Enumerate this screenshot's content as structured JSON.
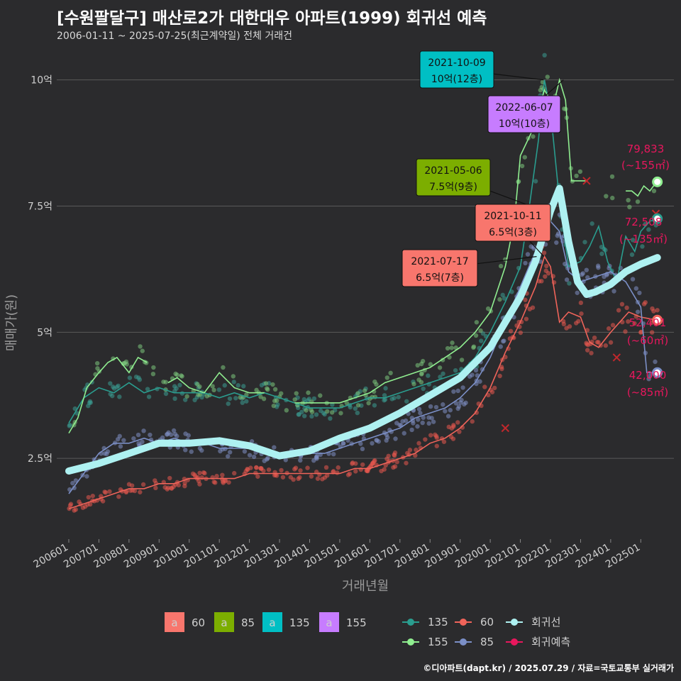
{
  "title": "[수원팔달구] 매산로2가 대한대우 아파트(1999) 회귀선 예측",
  "subtitle": "2006-01-11 ~ 2025-07-25(최근계약일) 전체 거래건",
  "footer": "©디아파트(dapt.kr) / 2025.07.29 / 자료=국토교통부 실거래가",
  "colors": {
    "s60": "#f8766d",
    "s85": "#7cae00",
    "s135": "#00bfc4",
    "s155": "#c77cff",
    "line135": "#2a9d8f",
    "line155": "#90ee90",
    "line60": "#f0645a",
    "line85": "#7b8fc7",
    "regression": "#aef1f1",
    "prediction": "#e8175d"
  },
  "chart_data": {
    "type": "line",
    "xlabel": "거래년월",
    "ylabel": "매매가(원)",
    "y_ticks": [
      {
        "value": 2.5,
        "label": "2.5억"
      },
      {
        "value": 5,
        "label": "5억"
      },
      {
        "value": 7.5,
        "label": "7.5억"
      },
      {
        "value": 10,
        "label": "10억"
      }
    ],
    "x_ticks": [
      "200601",
      "200701",
      "200801",
      "200901",
      "201001",
      "201101",
      "201201",
      "201301",
      "201401",
      "201501",
      "201601",
      "201701",
      "201801",
      "201901",
      "202001",
      "202101",
      "202201",
      "202301",
      "202401",
      "202501"
    ],
    "xlim": [
      2005.6,
      2026.1
    ],
    "ylim": [
      0.9,
      10.6
    ],
    "series": [
      {
        "name": "135",
        "color_key": "line135",
        "points": [
          [
            2006.0,
            3.2
          ],
          [
            2006.5,
            3.7
          ],
          [
            2007.0,
            3.9
          ],
          [
            2007.5,
            3.8
          ],
          [
            2008.0,
            4.0
          ],
          [
            2008.5,
            3.8
          ],
          [
            2009.0,
            3.9
          ],
          [
            2009.5,
            3.8
          ],
          [
            2010.0,
            3.8
          ],
          [
            2010.5,
            3.8
          ],
          [
            2011.0,
            3.7
          ],
          [
            2011.5,
            3.8
          ],
          [
            2012.0,
            3.7
          ],
          [
            2012.5,
            3.8
          ],
          [
            2013.0,
            3.7
          ],
          [
            2013.5,
            3.6
          ],
          [
            2014.0,
            3.5
          ],
          [
            2014.5,
            3.5
          ],
          [
            2015.0,
            3.5
          ],
          [
            2015.5,
            3.6
          ],
          [
            2016.0,
            3.7
          ],
          [
            2016.5,
            3.7
          ],
          [
            2017.0,
            3.8
          ],
          [
            2017.5,
            3.9
          ],
          [
            2018.0,
            4.0
          ],
          [
            2018.5,
            4.1
          ],
          [
            2019.0,
            4.2
          ],
          [
            2019.5,
            4.5
          ],
          [
            2020.0,
            5.0
          ],
          [
            2020.5,
            5.6
          ],
          [
            2021.0,
            6.3
          ],
          [
            2021.3,
            7.5
          ],
          [
            2021.6,
            8.8
          ],
          [
            2021.8,
            10.0
          ],
          [
            2022.0,
            9.4
          ],
          [
            2022.3,
            7.6
          ],
          [
            2022.6,
            6.3
          ],
          [
            2023.0,
            6.4
          ],
          [
            2023.3,
            6.7
          ],
          [
            2023.6,
            7.1
          ],
          [
            2023.9,
            6.4
          ],
          [
            2024.2,
            6.0
          ],
          [
            2024.5,
            6.9
          ],
          [
            2024.8,
            6.6
          ],
          [
            2025.0,
            7.0
          ],
          [
            2025.3,
            7.2
          ],
          [
            2025.55,
            7.25
          ]
        ]
      },
      {
        "name": "155",
        "color_key": "line155",
        "points": [
          [
            2006.0,
            3.0
          ],
          [
            2006.3,
            3.3
          ],
          [
            2006.6,
            3.9
          ],
          [
            2007.0,
            4.2
          ],
          [
            2007.3,
            4.4
          ],
          [
            2007.6,
            4.5
          ],
          [
            2008.0,
            4.2
          ],
          [
            2008.3,
            4.5
          ],
          [
            2008.6,
            4.4
          ],
          [
            2009.0,
            null
          ],
          [
            2009.3,
            4.0
          ],
          [
            2009.6,
            4.1
          ],
          [
            2010.0,
            3.9
          ],
          [
            2010.5,
            3.8
          ],
          [
            2011.0,
            4.2
          ],
          [
            2011.5,
            3.9
          ],
          [
            2012.0,
            3.8
          ],
          [
            2012.5,
            3.8
          ],
          [
            2013.5,
            null
          ],
          [
            2013.5,
            3.6
          ],
          [
            2014.0,
            3.6
          ],
          [
            2014.5,
            3.6
          ],
          [
            2015.0,
            3.6
          ],
          [
            2015.5,
            3.7
          ],
          [
            2016.0,
            3.8
          ],
          [
            2016.5,
            4.0
          ],
          [
            2017.0,
            4.1
          ],
          [
            2017.5,
            4.2
          ],
          [
            2018.0,
            4.3
          ],
          [
            2018.5,
            4.5
          ],
          [
            2019.0,
            4.7
          ],
          [
            2019.5,
            5.0
          ],
          [
            2020.0,
            5.4
          ],
          [
            2020.5,
            6.3
          ],
          [
            2020.8,
            7.2
          ],
          [
            2021.0,
            8.5
          ],
          [
            2021.4,
            9.0
          ],
          [
            2021.8,
            9.8
          ],
          [
            2022.1,
            9.5
          ],
          [
            2022.3,
            10.0
          ],
          [
            2022.5,
            9.6
          ],
          [
            2022.7,
            8.0
          ],
          [
            2023.0,
            8.0
          ],
          [
            2023.2,
            8.0
          ],
          [
            2023.3,
            null
          ],
          [
            2024.5,
            7.8
          ],
          [
            2024.7,
            7.8
          ],
          [
            2024.9,
            7.7
          ],
          [
            2025.1,
            7.9
          ],
          [
            2025.3,
            7.8
          ],
          [
            2025.55,
            8.0
          ]
        ]
      },
      {
        "name": "60",
        "color_key": "line60",
        "points": [
          [
            2006.0,
            1.5
          ],
          [
            2006.5,
            1.6
          ],
          [
            2007.0,
            1.7
          ],
          [
            2007.5,
            1.8
          ],
          [
            2008.0,
            1.9
          ],
          [
            2008.5,
            1.9
          ],
          [
            2009.0,
            2.0
          ],
          [
            2009.5,
            2.0
          ],
          [
            2010.0,
            2.1
          ],
          [
            2010.5,
            2.1
          ],
          [
            2011.0,
            2.1
          ],
          [
            2011.5,
            2.1
          ],
          [
            2012.0,
            2.2
          ],
          [
            2012.5,
            2.2
          ],
          [
            2013.0,
            2.2
          ],
          [
            2013.5,
            2.2
          ],
          [
            2014.0,
            2.2
          ],
          [
            2014.5,
            2.2
          ],
          [
            2015.0,
            2.2
          ],
          [
            2015.5,
            2.3
          ],
          [
            2016.0,
            2.3
          ],
          [
            2016.5,
            2.4
          ],
          [
            2017.0,
            2.5
          ],
          [
            2017.5,
            2.6
          ],
          [
            2018.0,
            2.8
          ],
          [
            2018.5,
            2.9
          ],
          [
            2019.0,
            3.1
          ],
          [
            2019.5,
            3.4
          ],
          [
            2020.0,
            3.9
          ],
          [
            2020.5,
            4.6
          ],
          [
            2021.0,
            5.2
          ],
          [
            2021.5,
            5.9
          ],
          [
            2021.8,
            6.5
          ],
          [
            2022.0,
            6.3
          ],
          [
            2022.3,
            5.2
          ],
          [
            2022.6,
            5.4
          ],
          [
            2023.0,
            5.3
          ],
          [
            2023.3,
            4.8
          ],
          [
            2023.6,
            4.7
          ],
          [
            2024.0,
            5.0
          ],
          [
            2024.3,
            5.2
          ],
          [
            2024.6,
            5.4
          ],
          [
            2025.0,
            5.3
          ],
          [
            2025.55,
            5.24
          ]
        ]
      },
      {
        "name": "85",
        "color_key": "line85",
        "points": [
          [
            2006.0,
            1.8
          ],
          [
            2006.5,
            2.2
          ],
          [
            2007.0,
            2.6
          ],
          [
            2007.5,
            2.8
          ],
          [
            2008.0,
            2.8
          ],
          [
            2008.5,
            2.9
          ],
          [
            2009.0,
            2.8
          ],
          [
            2009.5,
            2.9
          ],
          [
            2010.0,
            2.8
          ],
          [
            2010.5,
            2.8
          ],
          [
            2011.0,
            2.7
          ],
          [
            2011.5,
            2.7
          ],
          [
            2012.0,
            2.7
          ],
          [
            2012.5,
            2.6
          ],
          [
            2013.0,
            2.6
          ],
          [
            2013.5,
            2.6
          ],
          [
            2014.0,
            2.6
          ],
          [
            2014.5,
            2.6
          ],
          [
            2015.0,
            2.7
          ],
          [
            2015.5,
            2.8
          ],
          [
            2016.0,
            2.9
          ],
          [
            2016.5,
            3.0
          ],
          [
            2017.0,
            3.1
          ],
          [
            2017.5,
            3.3
          ],
          [
            2018.0,
            3.4
          ],
          [
            2018.5,
            3.5
          ],
          [
            2019.0,
            3.7
          ],
          [
            2019.5,
            4.0
          ],
          [
            2020.0,
            4.5
          ],
          [
            2020.5,
            5.2
          ],
          [
            2021.0,
            5.9
          ],
          [
            2021.5,
            6.6
          ],
          [
            2022.0,
            7.2
          ],
          [
            2022.3,
            7.0
          ],
          [
            2022.6,
            6.2
          ],
          [
            2023.0,
            6.0
          ],
          [
            2023.5,
            6.1
          ],
          [
            2024.0,
            6.2
          ],
          [
            2024.5,
            6.0
          ],
          [
            2025.0,
            5.5
          ],
          [
            2025.2,
            4.2
          ],
          [
            2025.55,
            4.2
          ]
        ]
      }
    ],
    "regression": [
      [
        2006.0,
        2.25
      ],
      [
        2007.0,
        2.4
      ],
      [
        2008.0,
        2.6
      ],
      [
        2009.0,
        2.8
      ],
      [
        2010.0,
        2.8
      ],
      [
        2011.0,
        2.85
      ],
      [
        2012.0,
        2.75
      ],
      [
        2013.0,
        2.55
      ],
      [
        2014.0,
        2.65
      ],
      [
        2015.0,
        2.9
      ],
      [
        2016.0,
        3.1
      ],
      [
        2017.0,
        3.4
      ],
      [
        2018.0,
        3.75
      ],
      [
        2019.0,
        4.1
      ],
      [
        2020.0,
        4.7
      ],
      [
        2021.0,
        5.7
      ],
      [
        2021.5,
        6.4
      ],
      [
        2022.0,
        7.4
      ],
      [
        2022.3,
        7.85
      ],
      [
        2022.6,
        6.8
      ],
      [
        2022.9,
        6.0
      ],
      [
        2023.2,
        5.75
      ],
      [
        2023.5,
        5.8
      ],
      [
        2024.0,
        5.95
      ],
      [
        2024.5,
        6.2
      ],
      [
        2025.0,
        6.35
      ],
      [
        2025.55,
        6.48
      ]
    ],
    "markers": [
      {
        "x": 2025.55,
        "y": 7.98,
        "color_key": "line155"
      },
      {
        "x": 2025.55,
        "y": 7.25,
        "color_key": "line135"
      },
      {
        "x": 2025.55,
        "y": 5.24,
        "color_key": "line60"
      },
      {
        "x": 2025.55,
        "y": 4.2,
        "color_key": "line85"
      }
    ],
    "outliers": [
      [
        2020.5,
        3.1
      ],
      [
        2023.2,
        8.0
      ],
      [
        2024.2,
        4.5
      ],
      [
        2025.5,
        7.35
      ]
    ],
    "annotations": [
      {
        "date": "2021-10-09",
        "value": "10억(12층)",
        "color_key": "s135",
        "x": 2021.77,
        "y": 10.0
      },
      {
        "date": "2022-06-07",
        "value": "10억(10층)",
        "color_key": "s155",
        "x": 2022.43,
        "y": 10.0
      },
      {
        "date": "2021-05-06",
        "value": "7.5억(9층)",
        "color_key": "s85",
        "x": 2021.35,
        "y": 7.5
      },
      {
        "date": "2021-10-11",
        "value": "6.5억(3층)",
        "color_key": "s60",
        "x": 2021.78,
        "y": 6.5
      },
      {
        "date": "2021-07-17",
        "value": "6.5억(7층)",
        "color_key": "s60",
        "x": 2021.54,
        "y": 6.5
      }
    ],
    "predictions": [
      {
        "value": "79,833",
        "area": "(~155㎡)"
      },
      {
        "value": "72,508",
        "area": "(~135㎡)"
      },
      {
        "value": "52,401",
        "area": "(~60㎡)"
      },
      {
        "value": "42,000",
        "area": "(~85㎡)"
      }
    ]
  },
  "legend": {
    "area_items": [
      {
        "glyph": "a",
        "label": "60",
        "color_key": "s60"
      },
      {
        "glyph": "a",
        "label": "85",
        "color_key": "s85"
      },
      {
        "glyph": "a",
        "label": "135",
        "color_key": "s135"
      },
      {
        "glyph": "a",
        "label": "155",
        "color_key": "s155"
      }
    ],
    "line_items": [
      {
        "label": "135",
        "color_key": "line135"
      },
      {
        "label": "60",
        "color_key": "line60"
      },
      {
        "label": "회귀선",
        "color_key": "regression"
      },
      {
        "label": "155",
        "color_key": "line155"
      },
      {
        "label": "85",
        "color_key": "line85"
      },
      {
        "label": "회귀예측",
        "color_key": "prediction"
      }
    ]
  }
}
